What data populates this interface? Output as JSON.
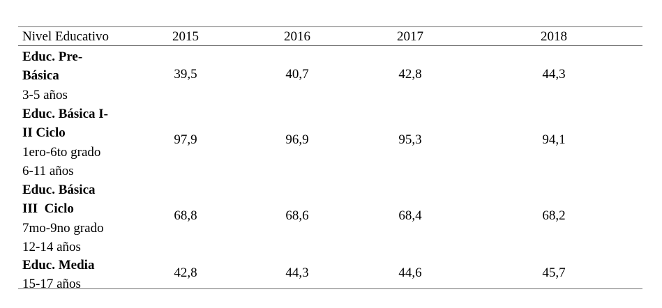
{
  "table": {
    "header": {
      "level_label": "Nivel Educativo",
      "years": [
        "2015",
        "2016",
        "2017",
        "2018"
      ]
    },
    "rows": [
      {
        "name": "Educ. Pre-­Básica",
        "name_lines": [
          "Educ. Pre-",
          "Básica"
        ],
        "sub_lines": [
          "3-5 años"
        ],
        "values": [
          "39,5",
          "40,7",
          "42,8",
          "44,3"
        ]
      },
      {
        "name_lines": [
          "Educ. Básica I-",
          "II Ciclo"
        ],
        "sub_lines": [
          "1ero-6to grado",
          "6-11 años"
        ],
        "values": [
          "97,9",
          "96,9",
          "95,3",
          "94,1"
        ]
      },
      {
        "name_lines": [
          "Educ. Básica",
          "III  Ciclo"
        ],
        "sub_lines": [
          "7mo-9no grado",
          "12-14 años"
        ],
        "values": [
          "68,8",
          "68,6",
          "68,4",
          "68,2"
        ]
      },
      {
        "name_lines": [
          "Educ. Media"
        ],
        "sub_lines": [
          "15-17 años"
        ],
        "values": [
          "42,8",
          "44,3",
          "44,6",
          "45,7"
        ]
      }
    ]
  }
}
